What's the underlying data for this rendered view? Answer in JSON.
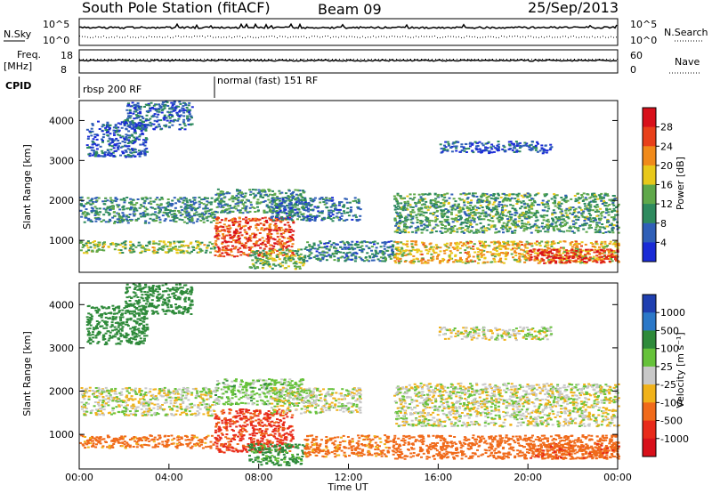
{
  "header": {
    "station": "South Pole Station (fitACF)",
    "beam": "Beam 09",
    "date": "25/Sep/2013"
  },
  "aux": {
    "nsky_label": "N.Sky",
    "nsearch_label": "N.Search",
    "freq_label_1": "Freq.",
    "freq_label_2": "[MHz]",
    "nave_label": "Nave",
    "cpid_label": "CPID",
    "noise_ticks_left": [
      "10^5",
      "10^0"
    ],
    "noise_ticks_right": [
      "10^5",
      "10^0"
    ],
    "freq_ticks": [
      "18",
      "8"
    ],
    "nave_ticks": [
      "60",
      "0"
    ],
    "cpid_segments": [
      {
        "label": "rbsp 200 RF",
        "start_hour": 0,
        "end_hour": 6
      },
      {
        "label": "normal (fast) 151 RF",
        "start_hour": 6,
        "end_hour": 24
      }
    ]
  },
  "x_axis": {
    "label": "Time UT",
    "ticks": [
      "00:00",
      "04:00",
      "08:00",
      "12:00",
      "16:00",
      "20:00",
      "00:00"
    ],
    "range_hours": [
      0,
      24
    ]
  },
  "power_panel": {
    "ylabel": "Slant Range [km]",
    "yticks": [
      "1000",
      "2000",
      "3000",
      "4000"
    ],
    "cb_label": "Power [dB]",
    "cb_ticks": [
      "4",
      "8",
      "12",
      "16",
      "20",
      "24",
      "28"
    ],
    "cb_colors": [
      "#1a2bd6",
      "#2f5fb7",
      "#2e8a5e",
      "#5fa84a",
      "#e8c81a",
      "#f08a1a",
      "#e8401a",
      "#d8101a"
    ]
  },
  "velocity_panel": {
    "ylabel": "Slant Range [km]",
    "yticks": [
      "1000",
      "2000",
      "3000",
      "4000"
    ],
    "cb_label": "Velocity [m s⁻¹]",
    "cb_ticks": [
      "1000",
      "500",
      "100",
      "25",
      "-25",
      "-100",
      "-500",
      "-1000"
    ],
    "cb_colors": [
      "#1f3fb0",
      "#2b78c8",
      "#2e8a3a",
      "#66c23a",
      "#c8c8c8",
      "#f0b21a",
      "#f06a1a",
      "#e82a1a",
      "#d8101a"
    ]
  },
  "chart_data": {
    "type": "heatmap",
    "title": "South Pole Station (fitACF)",
    "xlabel": "Time UT",
    "ylabel": "Slant Range [km]",
    "xlim_hours": [
      0,
      24
    ],
    "ylim_km": [
      200,
      4500
    ],
    "power_db_range": [
      0,
      30
    ],
    "velocity_range_ms": [
      -1000,
      1000
    ],
    "echo_bands": [
      {
        "start_hour": 0.0,
        "end_hour": 6.0,
        "range_low_km": 1450,
        "range_high_km": 2100,
        "power_db": 9,
        "velocity_ms": 0
      },
      {
        "start_hour": 0.0,
        "end_hour": 6.0,
        "range_low_km": 700,
        "range_high_km": 1000,
        "power_db": 14,
        "velocity_ms": -150
      },
      {
        "start_hour": 0.3,
        "end_hour": 3.0,
        "range_low_km": 3100,
        "range_high_km": 4000,
        "power_db": 5,
        "velocity_ms": 200
      },
      {
        "start_hour": 2.0,
        "end_hour": 5.0,
        "range_low_km": 3800,
        "range_high_km": 4500,
        "power_db": 6,
        "velocity_ms": 300
      },
      {
        "start_hour": 6.0,
        "end_hour": 9.5,
        "range_low_km": 600,
        "range_high_km": 1600,
        "power_db": 24,
        "velocity_ms": -600
      },
      {
        "start_hour": 6.0,
        "end_hour": 10.0,
        "range_low_km": 1700,
        "range_high_km": 2300,
        "power_db": 10,
        "velocity_ms": 50
      },
      {
        "start_hour": 7.5,
        "end_hour": 10.0,
        "range_low_km": 300,
        "range_high_km": 800,
        "power_db": 13,
        "velocity_ms": 150
      },
      {
        "start_hour": 8.5,
        "end_hour": 12.5,
        "range_low_km": 1500,
        "range_high_km": 2100,
        "power_db": 7,
        "velocity_ms": 0
      },
      {
        "start_hour": 10.0,
        "end_hour": 14.0,
        "range_low_km": 500,
        "range_high_km": 1000,
        "power_db": 8,
        "velocity_ms": -150
      },
      {
        "start_hour": 14.0,
        "end_hour": 24.0,
        "range_low_km": 1200,
        "range_high_km": 2200,
        "power_db": 11,
        "velocity_ms": 0
      },
      {
        "start_hour": 14.0,
        "end_hour": 24.0,
        "range_low_km": 450,
        "range_high_km": 1000,
        "power_db": 18,
        "velocity_ms": -250
      },
      {
        "start_hour": 20.0,
        "end_hour": 24.0,
        "range_low_km": 450,
        "range_high_km": 800,
        "power_db": 26,
        "velocity_ms": -400
      },
      {
        "start_hour": 16.0,
        "end_hour": 21.0,
        "range_low_km": 3200,
        "range_high_km": 3500,
        "power_db": 5,
        "velocity_ms": 0
      }
    ]
  }
}
